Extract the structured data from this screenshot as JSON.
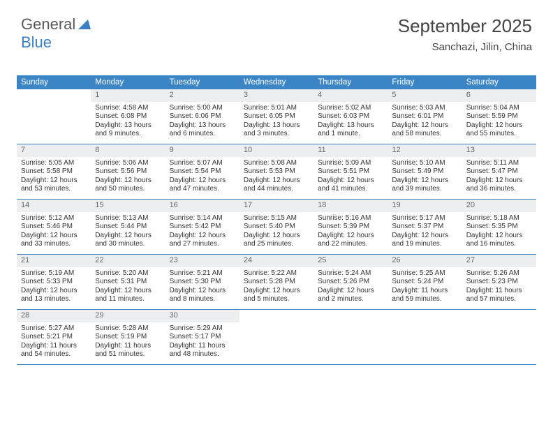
{
  "brand": {
    "part1": "General",
    "part2": "Blue"
  },
  "title": "September 2025",
  "location": "Sanchazi, Jilin, China",
  "colors": {
    "header_bg": "#3b85c6",
    "header_text": "#ffffff",
    "divider": "#3b7fc4",
    "datebar_bg": "#eceef0",
    "text": "#333333",
    "logo_gray": "#5a5a5a",
    "logo_blue": "#3b7fc4"
  },
  "day_names": [
    "Sunday",
    "Monday",
    "Tuesday",
    "Wednesday",
    "Thursday",
    "Friday",
    "Saturday"
  ],
  "weeks": [
    [
      {
        "date": "",
        "lines": []
      },
      {
        "date": "1",
        "lines": [
          "Sunrise: 4:58 AM",
          "Sunset: 6:08 PM",
          "Daylight: 13 hours and 9 minutes."
        ]
      },
      {
        "date": "2",
        "lines": [
          "Sunrise: 5:00 AM",
          "Sunset: 6:06 PM",
          "Daylight: 13 hours and 6 minutes."
        ]
      },
      {
        "date": "3",
        "lines": [
          "Sunrise: 5:01 AM",
          "Sunset: 6:05 PM",
          "Daylight: 13 hours and 3 minutes."
        ]
      },
      {
        "date": "4",
        "lines": [
          "Sunrise: 5:02 AM",
          "Sunset: 6:03 PM",
          "Daylight: 13 hours and 1 minute."
        ]
      },
      {
        "date": "5",
        "lines": [
          "Sunrise: 5:03 AM",
          "Sunset: 6:01 PM",
          "Daylight: 12 hours and 58 minutes."
        ]
      },
      {
        "date": "6",
        "lines": [
          "Sunrise: 5:04 AM",
          "Sunset: 5:59 PM",
          "Daylight: 12 hours and 55 minutes."
        ]
      }
    ],
    [
      {
        "date": "7",
        "lines": [
          "Sunrise: 5:05 AM",
          "Sunset: 5:58 PM",
          "Daylight: 12 hours and 53 minutes."
        ]
      },
      {
        "date": "8",
        "lines": [
          "Sunrise: 5:06 AM",
          "Sunset: 5:56 PM",
          "Daylight: 12 hours and 50 minutes."
        ]
      },
      {
        "date": "9",
        "lines": [
          "Sunrise: 5:07 AM",
          "Sunset: 5:54 PM",
          "Daylight: 12 hours and 47 minutes."
        ]
      },
      {
        "date": "10",
        "lines": [
          "Sunrise: 5:08 AM",
          "Sunset: 5:53 PM",
          "Daylight: 12 hours and 44 minutes."
        ]
      },
      {
        "date": "11",
        "lines": [
          "Sunrise: 5:09 AM",
          "Sunset: 5:51 PM",
          "Daylight: 12 hours and 41 minutes."
        ]
      },
      {
        "date": "12",
        "lines": [
          "Sunrise: 5:10 AM",
          "Sunset: 5:49 PM",
          "Daylight: 12 hours and 39 minutes."
        ]
      },
      {
        "date": "13",
        "lines": [
          "Sunrise: 5:11 AM",
          "Sunset: 5:47 PM",
          "Daylight: 12 hours and 36 minutes."
        ]
      }
    ],
    [
      {
        "date": "14",
        "lines": [
          "Sunrise: 5:12 AM",
          "Sunset: 5:46 PM",
          "Daylight: 12 hours and 33 minutes."
        ]
      },
      {
        "date": "15",
        "lines": [
          "Sunrise: 5:13 AM",
          "Sunset: 5:44 PM",
          "Daylight: 12 hours and 30 minutes."
        ]
      },
      {
        "date": "16",
        "lines": [
          "Sunrise: 5:14 AM",
          "Sunset: 5:42 PM",
          "Daylight: 12 hours and 27 minutes."
        ]
      },
      {
        "date": "17",
        "lines": [
          "Sunrise: 5:15 AM",
          "Sunset: 5:40 PM",
          "Daylight: 12 hours and 25 minutes."
        ]
      },
      {
        "date": "18",
        "lines": [
          "Sunrise: 5:16 AM",
          "Sunset: 5:39 PM",
          "Daylight: 12 hours and 22 minutes."
        ]
      },
      {
        "date": "19",
        "lines": [
          "Sunrise: 5:17 AM",
          "Sunset: 5:37 PM",
          "Daylight: 12 hours and 19 minutes."
        ]
      },
      {
        "date": "20",
        "lines": [
          "Sunrise: 5:18 AM",
          "Sunset: 5:35 PM",
          "Daylight: 12 hours and 16 minutes."
        ]
      }
    ],
    [
      {
        "date": "21",
        "lines": [
          "Sunrise: 5:19 AM",
          "Sunset: 5:33 PM",
          "Daylight: 12 hours and 13 minutes."
        ]
      },
      {
        "date": "22",
        "lines": [
          "Sunrise: 5:20 AM",
          "Sunset: 5:31 PM",
          "Daylight: 12 hours and 11 minutes."
        ]
      },
      {
        "date": "23",
        "lines": [
          "Sunrise: 5:21 AM",
          "Sunset: 5:30 PM",
          "Daylight: 12 hours and 8 minutes."
        ]
      },
      {
        "date": "24",
        "lines": [
          "Sunrise: 5:22 AM",
          "Sunset: 5:28 PM",
          "Daylight: 12 hours and 5 minutes."
        ]
      },
      {
        "date": "25",
        "lines": [
          "Sunrise: 5:24 AM",
          "Sunset: 5:26 PM",
          "Daylight: 12 hours and 2 minutes."
        ]
      },
      {
        "date": "26",
        "lines": [
          "Sunrise: 5:25 AM",
          "Sunset: 5:24 PM",
          "Daylight: 11 hours and 59 minutes."
        ]
      },
      {
        "date": "27",
        "lines": [
          "Sunrise: 5:26 AM",
          "Sunset: 5:23 PM",
          "Daylight: 11 hours and 57 minutes."
        ]
      }
    ],
    [
      {
        "date": "28",
        "lines": [
          "Sunrise: 5:27 AM",
          "Sunset: 5:21 PM",
          "Daylight: 11 hours and 54 minutes."
        ]
      },
      {
        "date": "29",
        "lines": [
          "Sunrise: 5:28 AM",
          "Sunset: 5:19 PM",
          "Daylight: 11 hours and 51 minutes."
        ]
      },
      {
        "date": "30",
        "lines": [
          "Sunrise: 5:29 AM",
          "Sunset: 5:17 PM",
          "Daylight: 11 hours and 48 minutes."
        ]
      },
      {
        "date": "",
        "lines": []
      },
      {
        "date": "",
        "lines": []
      },
      {
        "date": "",
        "lines": []
      },
      {
        "date": "",
        "lines": []
      }
    ]
  ]
}
